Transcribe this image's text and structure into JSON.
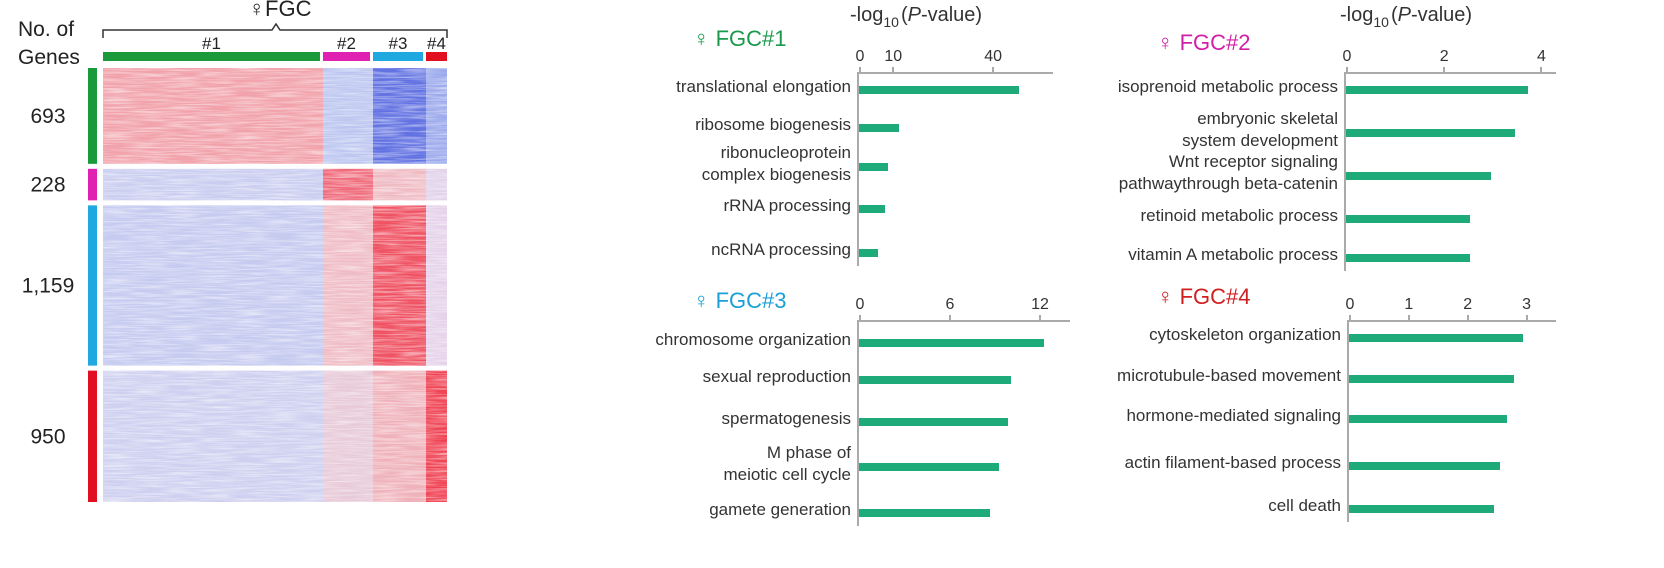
{
  "chart_data": [
    {
      "type": "heatmap",
      "title": "♀FGC",
      "ylabel": "No. of\nGenes",
      "columns": [
        "#1",
        "#2",
        "#3",
        "#4"
      ],
      "column_colors": [
        "#1a9a3a",
        "#e020b0",
        "#20a8e0",
        "#e01020"
      ],
      "rows": {
        "values": [
          693,
          228,
          1159,
          950
        ],
        "value_labels": [
          "693",
          "228",
          "1,159",
          "950"
        ],
        "colors": [
          "#1a9a3a",
          "#e020b0",
          "#20a8e0",
          "#e01020"
        ]
      }
    },
    {
      "type": "barh",
      "title": "♀ FGC#1",
      "title_color": "#1a9a4a",
      "xlabel": [
        "-log",
        "10",
        "(",
        "P",
        "-value)"
      ],
      "categories": [
        "translational elongation",
        "ribosome biogenesis",
        "ribonucleoprotein\ncomplex biogenesis",
        "rRNA processing",
        "ncRNA processing"
      ],
      "values": [
        48,
        12,
        8.7,
        7.8,
        5.7
      ],
      "color": "#1faa7a",
      "xlim": [
        0,
        58
      ],
      "xticks": [
        0,
        10,
        40
      ]
    },
    {
      "type": "barh",
      "title": "♀ FGC#2",
      "title_color": "#d21fa8",
      "xlabel": [
        "-log",
        "10",
        "(",
        "P",
        "-value)"
      ],
      "categories": [
        "isoprenoid metabolic process",
        "embryonic skeletal\nsystem development",
        "Wnt receptor signaling\npathwaythrough beta-catenin",
        "retinoid metabolic process",
        "vitamin A metabolic process"
      ],
      "values": [
        3.75,
        3.48,
        2.98,
        2.56,
        2.56
      ],
      "color": "#1faa7a",
      "xlim": [
        0,
        4.3
      ],
      "xticks": [
        0,
        2,
        4
      ]
    },
    {
      "type": "barh",
      "title": "♀ FGC#3",
      "title_color": "#1aa0d8",
      "categories": [
        "chromosome organization",
        "sexual reproduction",
        "spermatogenesis",
        "M phase of\nmeiotic cell cycle",
        "gamete generation"
      ],
      "values": [
        12.3,
        10.1,
        9.9,
        9.3,
        8.7
      ],
      "color": "#1faa7a",
      "xlim": [
        0,
        14
      ],
      "xticks": [
        0,
        6,
        12
      ]
    },
    {
      "type": "barh",
      "title": "♀ FGC#4",
      "title_color": "#d12020",
      "categories": [
        "cytoskeleton organization",
        "microtubule-based movement",
        "hormone-mediated signaling",
        "actin filament-based process",
        "cell death"
      ],
      "values": [
        2.95,
        2.81,
        2.69,
        2.57,
        2.47
      ],
      "color": "#1faa7a",
      "xlim": [
        0,
        3.5
      ],
      "xticks": [
        0,
        1,
        2,
        3
      ]
    }
  ]
}
